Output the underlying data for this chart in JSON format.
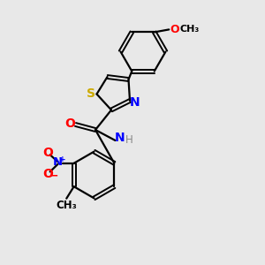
{
  "background_color": "#e8e8e8",
  "bond_color": "#000000",
  "atom_colors": {
    "S": "#ccaa00",
    "N": "#0000ff",
    "O": "#ff0000",
    "H": "#888888",
    "C": "#000000"
  },
  "figsize": [
    3.0,
    3.0
  ],
  "dpi": 100,
  "xlim": [
    0,
    10
  ],
  "ylim": [
    0,
    10
  ]
}
